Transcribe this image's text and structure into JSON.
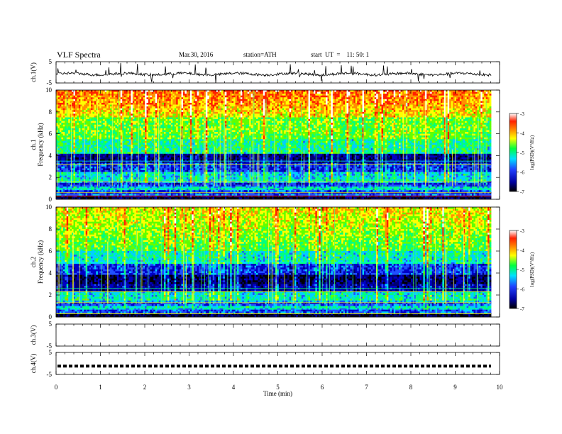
{
  "header": {
    "title": "VLF Spectra",
    "date": "Mar.30, 2016",
    "station": "station=ATH",
    "start": "start  UT  =    11: 50: 1"
  },
  "chart_data": [
    {
      "type": "line",
      "panel": "ch1-waveform",
      "ylabel": "ch.1(V)",
      "yticks": [
        "5",
        "-5"
      ],
      "ylim": [
        -5,
        5
      ],
      "baseline": -0.8,
      "color": "#000000"
    },
    {
      "type": "heatmap",
      "panel": "ch1-spectrogram",
      "ylabel_channel": "ch.1",
      "ylabel": "Frequency  (kHz)",
      "yticks": [
        "0",
        "2",
        "4",
        "6",
        "8",
        "10"
      ],
      "ylim": [
        0,
        10
      ],
      "colorbar": {
        "label": "log(PSD)(V²/Hz)",
        "ticks": [
          "-3",
          "-4",
          "-5",
          "-6",
          "-7"
        ],
        "range": [
          -7,
          -3
        ]
      }
    },
    {
      "type": "heatmap",
      "panel": "ch2-spectrogram",
      "ylabel_channel": "ch.2",
      "ylabel": "Frequency  (kHz)",
      "yticks": [
        "0",
        "2",
        "4",
        "6",
        "8",
        "10"
      ],
      "ylim": [
        0,
        10
      ],
      "colorbar": {
        "label": "log(PSD)(V²/Hz)",
        "ticks": [
          "-3",
          "-4",
          "-5",
          "-6",
          "-7"
        ],
        "range": [
          -7,
          -3
        ]
      }
    },
    {
      "type": "line",
      "panel": "ch3-waveform",
      "ylabel": "ch.3(V)",
      "yticks": [
        "5",
        "-5"
      ],
      "ylim": [
        -5,
        5
      ]
    },
    {
      "type": "line",
      "panel": "ch4-waveform",
      "ylabel": "ch.4(V)",
      "yticks": [
        "5",
        "-5"
      ],
      "ylim": [
        -5,
        5
      ],
      "baseline": -1.2,
      "style": "dashed"
    }
  ],
  "xaxis": {
    "label": "Time  (min)",
    "ticks": [
      "0",
      "1",
      "2",
      "3",
      "4",
      "5",
      "6",
      "7",
      "8",
      "9",
      "10"
    ],
    "xlim": [
      0,
      10
    ],
    "data_end": 9.8
  }
}
